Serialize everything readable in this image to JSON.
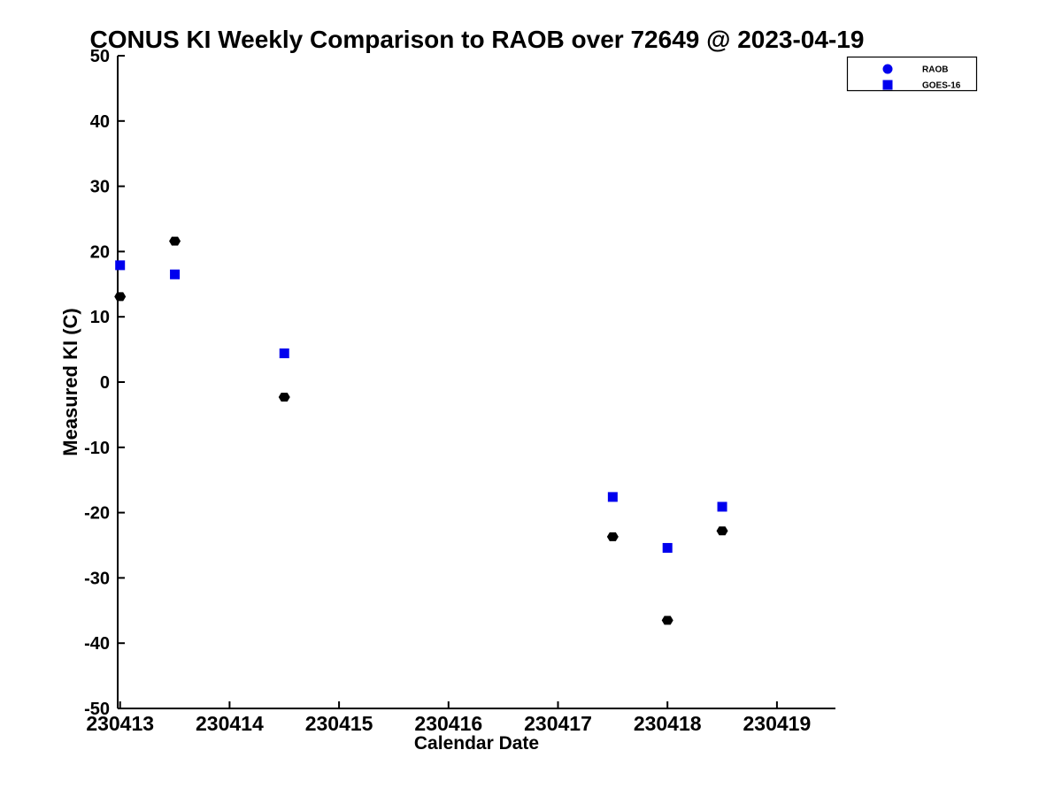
{
  "chart_data": {
    "type": "scatter",
    "title": "CONUS KI Weekly Comparison to RAOB over 72649 @ 2023-04-19",
    "xlabel": "Calendar Date",
    "ylabel": "Measured KI (C)",
    "x_ticks": [
      "230413",
      "230414",
      "230415",
      "230416",
      "230417",
      "230418",
      "230419"
    ],
    "y_ticks": [
      50,
      40,
      30,
      20,
      10,
      0,
      -10,
      -20,
      -30,
      -40,
      -50
    ],
    "xlim": [
      230413,
      230419.55
    ],
    "ylim": [
      -50,
      50
    ],
    "grid": false,
    "axes_color": "#000000",
    "background_color": "#ffffff",
    "legend": {
      "position": "top-right",
      "entries": [
        {
          "label": "RAOB",
          "marker": "circle",
          "color": "#0000ee"
        },
        {
          "label": "GOES-16",
          "marker": "square",
          "color": "#0000ee"
        }
      ]
    },
    "series": [
      {
        "name": "RAOB",
        "marker": "hexagon",
        "color": "#000000",
        "points": [
          [
            230413.0,
            13.1
          ],
          [
            230413.5,
            21.6
          ],
          [
            230414.5,
            -2.3
          ],
          [
            230417.5,
            -23.7
          ],
          [
            230418.0,
            -36.5
          ],
          [
            230418.5,
            -22.8
          ]
        ]
      },
      {
        "name": "GOES-16",
        "marker": "square",
        "color": "#0000ee",
        "points": [
          [
            230413.0,
            17.9
          ],
          [
            230413.5,
            16.5
          ],
          [
            230414.5,
            4.4
          ],
          [
            230417.5,
            -17.6
          ],
          [
            230418.0,
            -25.4
          ],
          [
            230418.5,
            -19.1
          ]
        ]
      }
    ]
  }
}
